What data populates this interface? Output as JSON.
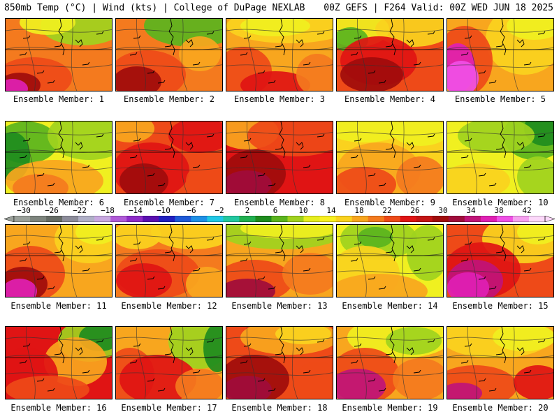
{
  "header": {
    "left": "850mb Temp (°C) | Wind (kts) | College of DuPage NEXLAB",
    "right": "00Z GEFS | F264 Valid: 00Z WED JUN 18 2025"
  },
  "panel_label_prefix": "Ensemble Member: ",
  "members": [
    {
      "number": "1",
      "label": "Ensemble Member: 1"
    },
    {
      "number": "2",
      "label": "Ensemble Member: 2"
    },
    {
      "number": "3",
      "label": "Ensemble Member: 3"
    },
    {
      "number": "4",
      "label": "Ensemble Member: 4"
    },
    {
      "number": "5",
      "label": "Ensemble Member: 5"
    },
    {
      "number": "6",
      "label": "Ensemble Member: 6"
    },
    {
      "number": "7",
      "label": "Ensemble Member: 7"
    },
    {
      "number": "8",
      "label": "Ensemble Member: 8"
    },
    {
      "number": "9",
      "label": "Ensemble Member: 9"
    },
    {
      "number": "10",
      "label": "Ensemble Member: 10"
    },
    {
      "number": "11",
      "label": "Ensemble Member: 11"
    },
    {
      "number": "12",
      "label": "Ensemble Member: 12"
    },
    {
      "number": "13",
      "label": "Ensemble Member: 13"
    },
    {
      "number": "14",
      "label": "Ensemble Member: 14"
    },
    {
      "number": "15",
      "label": "Ensemble Member: 15"
    },
    {
      "number": "16",
      "label": "Ensemble Member: 16"
    },
    {
      "number": "17",
      "label": "Ensemble Member: 17"
    },
    {
      "number": "18",
      "label": "Ensemble Member: 18"
    },
    {
      "number": "19",
      "label": "Ensemble Member: 19"
    },
    {
      "number": "20",
      "label": "Ensemble Member: 20"
    }
  ],
  "colorbar": {
    "ticks": [
      "−30",
      "−26",
      "−22",
      "−18",
      "−14",
      "−10",
      "−6",
      "−2",
      "2",
      "6",
      "10",
      "14",
      "18",
      "22",
      "26",
      "30",
      "34",
      "38",
      "42"
    ],
    "colors": [
      "#9aa09a",
      "#7d847d",
      "#656b65",
      "#8c8c9a",
      "#b0b0c8",
      "#c8a8e0",
      "#b05ad8",
      "#8e2cc8",
      "#5a10b0",
      "#2020c0",
      "#1e5ad8",
      "#1e90e6",
      "#20c8e6",
      "#22c8a0",
      "#20b050",
      "#1e8c1e",
      "#5ab41e",
      "#a0d21e",
      "#e6ee1e",
      "#f8f020",
      "#fad21e",
      "#f8a61e",
      "#f47a1e",
      "#ee4a18",
      "#e01414",
      "#c41414",
      "#a00c0c",
      "#a00c3c",
      "#c01478",
      "#e020b4",
      "#f050e6",
      "#f6a0f0",
      "#fcd8fa"
    ]
  }
}
